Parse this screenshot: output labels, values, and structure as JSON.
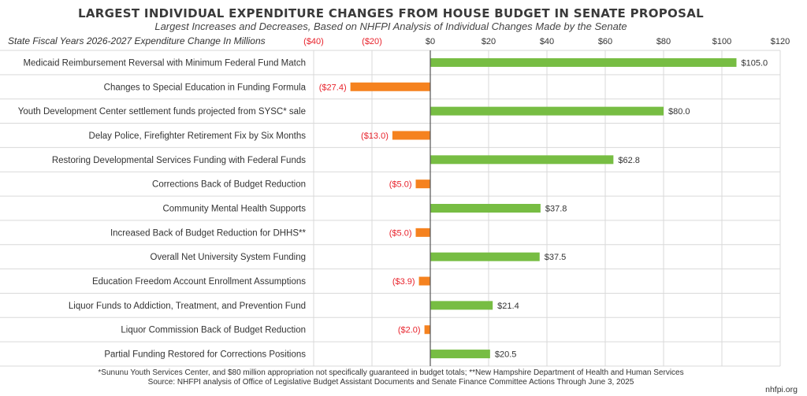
{
  "header": {
    "title": "LARGEST INDIVIDUAL EXPENDITURE CHANGES FROM HOUSE BUDGET IN SENATE PROPOSAL",
    "subtitle": "Largest Increases and Decreases, Based on NHFPI Analysis of Individual Changes Made by the Senate"
  },
  "colors": {
    "positive": "#77bd43",
    "negative": "#f5821f",
    "negative_text": "#e8222b",
    "grid": "#d9d9d9",
    "axis": "#555555",
    "text": "#333333"
  },
  "chart_data": {
    "type": "bar",
    "orientation": "horizontal",
    "axis_caption": "State Fiscal Years 2026-2027 Expenditure Change In Millions",
    "xlim": [
      -40,
      120
    ],
    "ticks": [
      -40,
      -20,
      0,
      20,
      40,
      60,
      80,
      100,
      120
    ],
    "tick_labels": [
      "($40)",
      "($20)",
      "$0",
      "$20",
      "$40",
      "$60",
      "$80",
      "$100",
      "$120"
    ],
    "grid": true,
    "categories": [
      "Medicaid Reimbursement Reversal with Minimum Federal Fund Match",
      "Changes to Special Education in Funding Formula",
      "Youth Development Center settlement funds projected from SYSC* sale",
      "Delay Police, Firefighter Retirement Fix by Six Months",
      "Restoring Developmental Services Funding with Federal Funds",
      "Corrections Back of Budget Reduction",
      "Community Mental Health Supports",
      "Increased Back of Budget Reduction for DHHS**",
      "Overall Net University System Funding",
      "Education Freedom Account Enrollment Assumptions",
      "Liquor Funds to Addiction, Treatment, and Prevention Fund",
      "Liquor Commission Back of Budget Reduction",
      "Partial Funding Restored for Corrections Positions"
    ],
    "values": [
      105.0,
      -27.4,
      80.0,
      -13.0,
      62.8,
      -5.0,
      37.8,
      -5.0,
      37.5,
      -3.9,
      21.4,
      -2.0,
      20.5
    ],
    "value_labels": [
      "$105.0",
      "($27.4)",
      "$80.0",
      "($13.0)",
      "$62.8",
      "($5.0)",
      "$37.8",
      "($5.0)",
      "$37.5",
      "($3.9)",
      "$21.4",
      "($2.0)",
      "$20.5"
    ]
  },
  "footer": {
    "note": "*Sununu Youth Services Center, and $80 million appropriation not specifically guaranteed in budget totals; **New Hampshire Department of Health and Human Services",
    "source": "Source: NHFPI analysis of Office of Legislative Budget Assistant Documents and Senate Finance Committee Actions Through June 3, 2025",
    "brand": "nhfpi.org"
  }
}
